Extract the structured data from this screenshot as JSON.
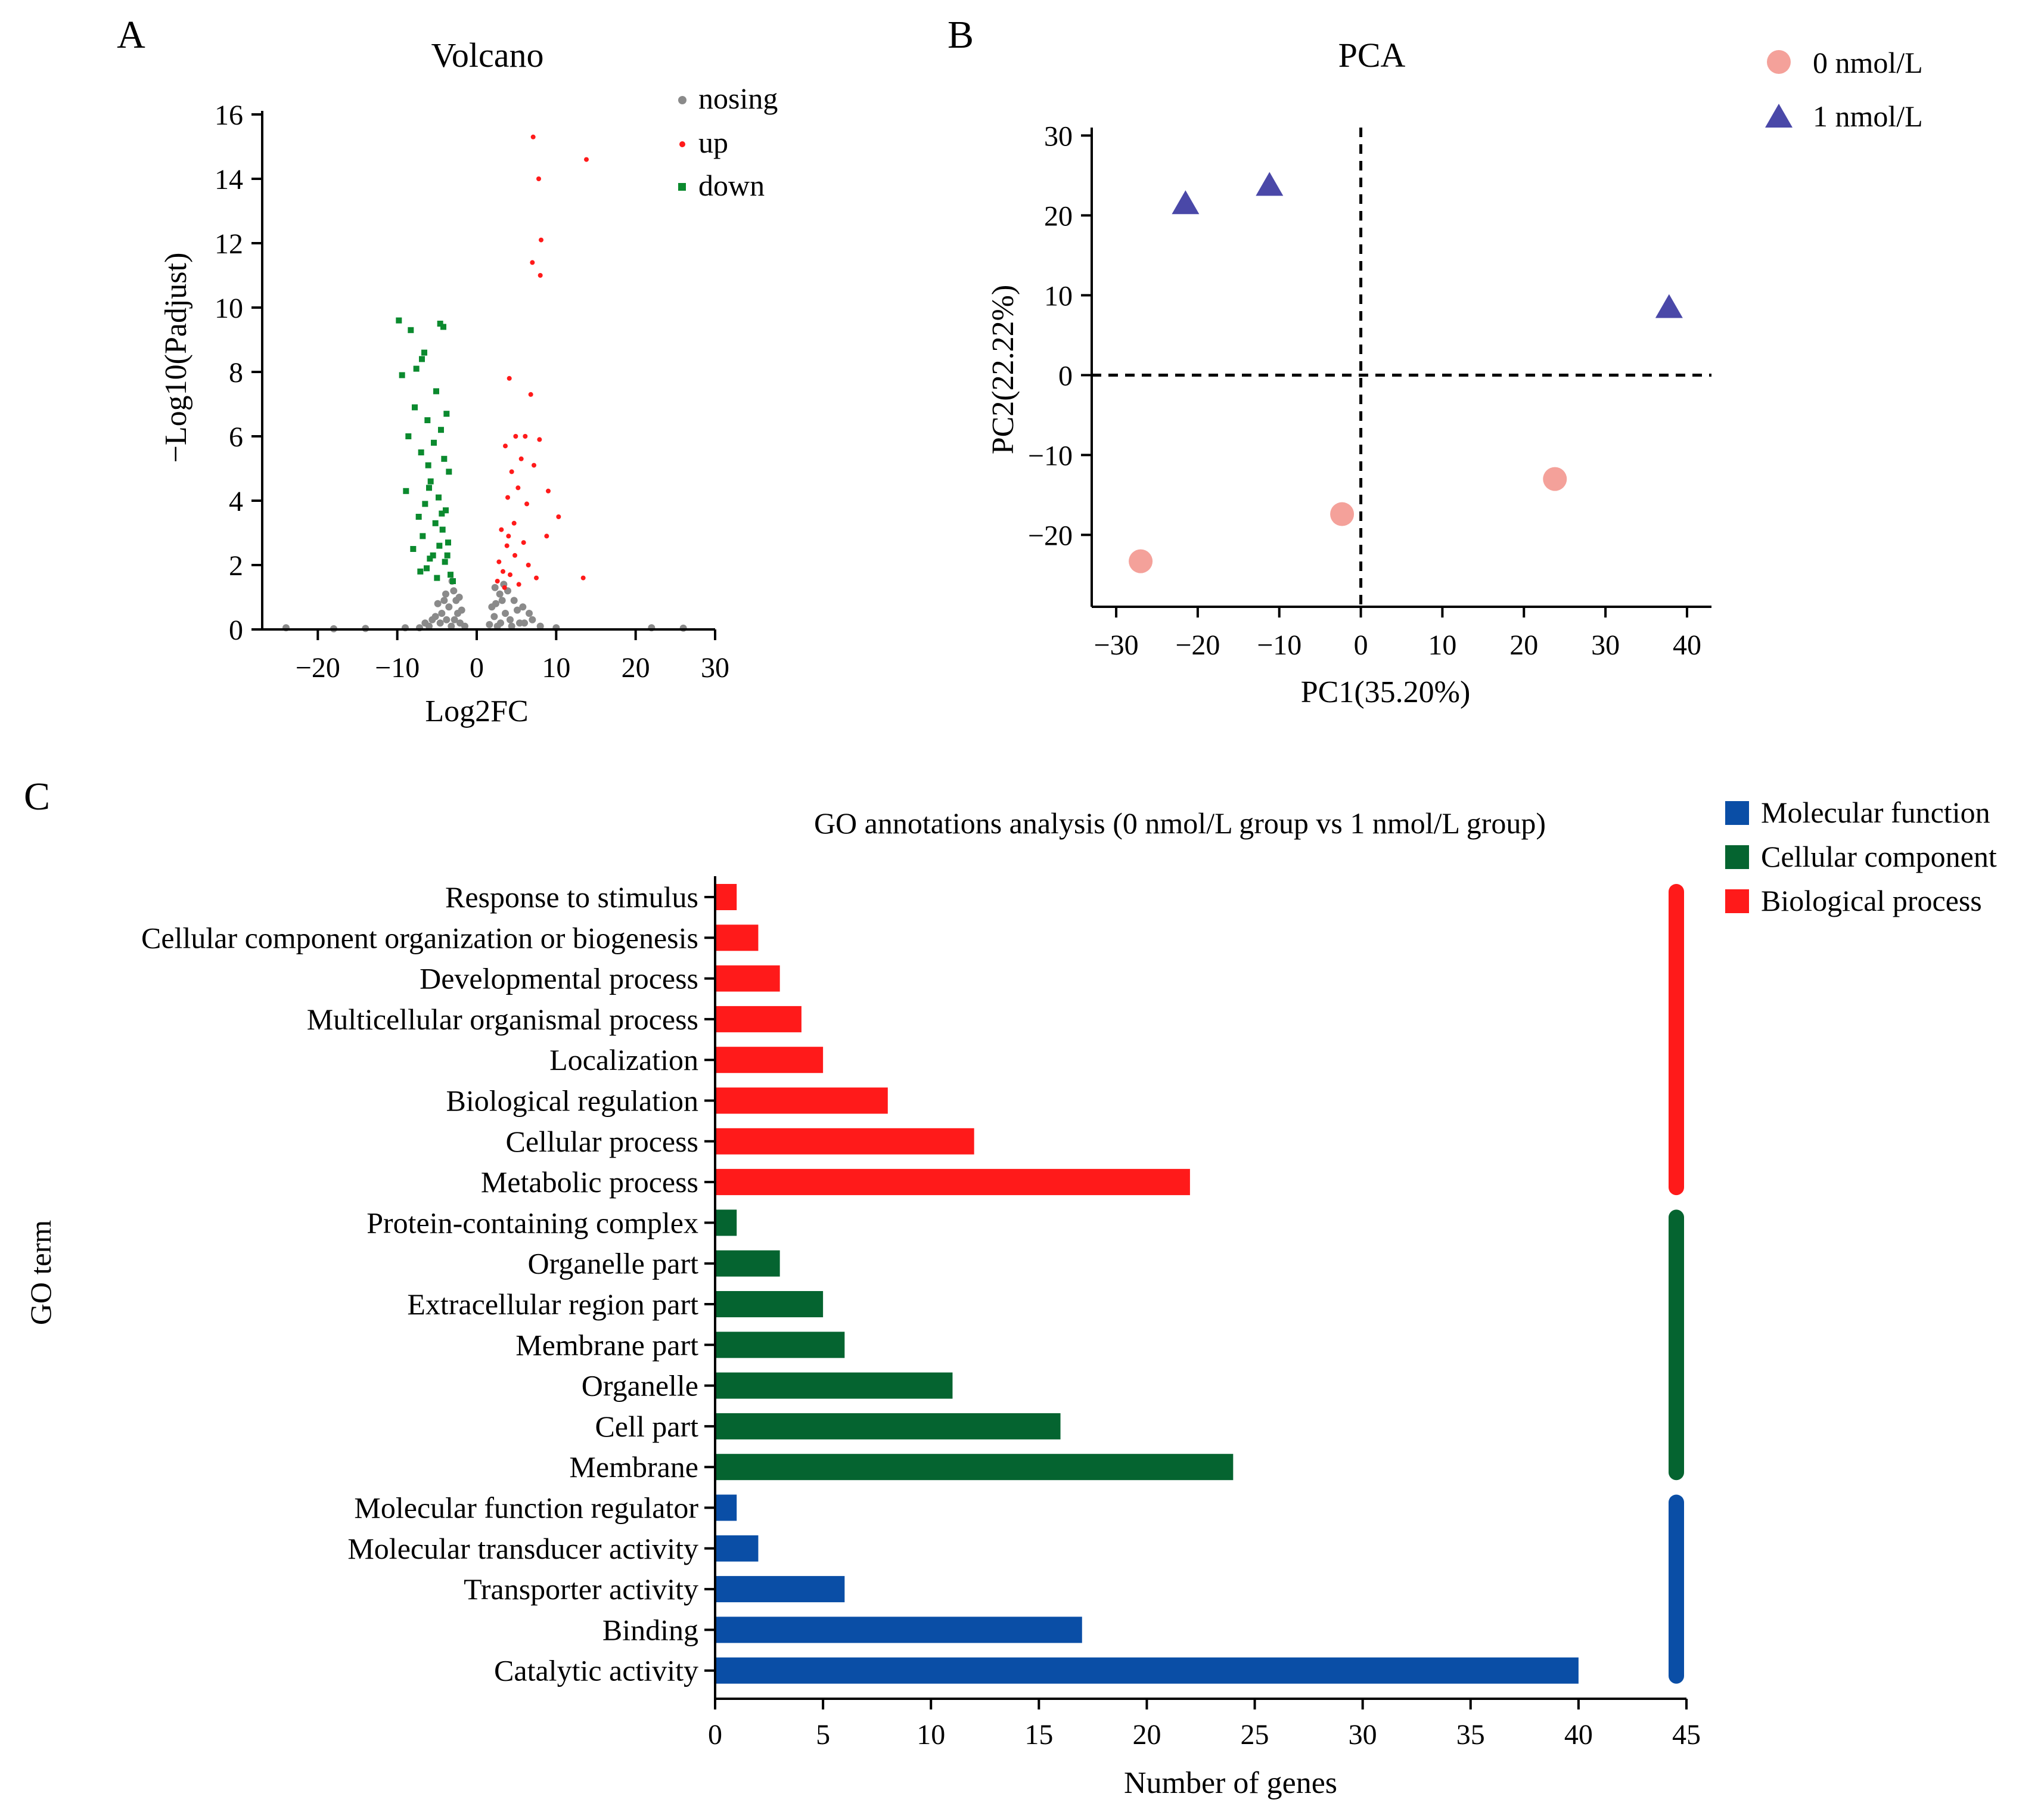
{
  "panel_labels": [
    "A",
    "B",
    "C"
  ],
  "colors": {
    "nosig": "#8a8a8a",
    "up": "#ff1a1a",
    "down": "#0b8a2e",
    "pca_0": "#f4a19a",
    "pca_1": "#4a48a8",
    "mf": "#0a4ea6",
    "cc": "#056430",
    "bp": "#ff1a1a"
  },
  "chart_data": [
    {
      "type": "scatter",
      "title": "Volcano",
      "xlabel": "Log2FC",
      "ylabel": "−Log10(Padjust)",
      "xlim": [
        -27,
        30
      ],
      "ylim": [
        0,
        16
      ],
      "xticks": [
        -20,
        -10,
        0,
        10,
        20,
        30
      ],
      "xtick_labels": [
        "−20",
        "−10",
        "0",
        "10",
        "20",
        "30"
      ],
      "yticks": [
        0,
        2,
        4,
        6,
        8,
        10,
        12,
        14,
        16
      ],
      "legend": [
        "nosing",
        "up",
        "down"
      ],
      "series": [
        {
          "name": "nosing",
          "color": "#8a8a8a",
          "points": [
            [
              -3.2,
              0.1
            ],
            [
              -3.8,
              0.3
            ],
            [
              -2.4,
              0.5
            ],
            [
              -4.1,
              0.9
            ],
            [
              -2.9,
              1.2
            ],
            [
              -3.5,
              0.7
            ],
            [
              -4.6,
              0.2
            ],
            [
              -5.2,
              0.4
            ],
            [
              -2.1,
              0.2
            ],
            [
              -6.0,
              0.1
            ],
            [
              -4.9,
              0.8
            ],
            [
              -3.1,
              1.5
            ],
            [
              -2.6,
              0.9
            ],
            [
              -5.6,
              0.3
            ],
            [
              -7.2,
              0.05
            ],
            [
              -3.9,
              1.1
            ],
            [
              -4.4,
              0.5
            ],
            [
              -2.2,
              1.0
            ],
            [
              -6.5,
              0.2
            ],
            [
              -2.8,
              0.3
            ],
            [
              3.0,
              0.2
            ],
            [
              3.6,
              0.5
            ],
            [
              2.4,
              0.8
            ],
            [
              4.2,
              0.3
            ],
            [
              2.9,
              1.1
            ],
            [
              5.1,
              0.6
            ],
            [
              3.4,
              1.4
            ],
            [
              2.2,
              0.4
            ],
            [
              6.0,
              0.2
            ],
            [
              4.7,
              0.9
            ],
            [
              3.9,
              1.2
            ],
            [
              2.6,
              0.1
            ],
            [
              5.8,
              0.7
            ],
            [
              7.0,
              0.3
            ],
            [
              4.4,
              0.1
            ],
            [
              3.2,
              0.9
            ],
            [
              6.6,
              0.5
            ],
            [
              2.3,
              1.3
            ],
            [
              5.4,
              0.2
            ],
            [
              8.0,
              0.1
            ],
            [
              -24,
              0.05
            ],
            [
              -18,
              0.02
            ],
            [
              -14,
              0.03
            ],
            [
              22,
              0.05
            ],
            [
              26,
              0.04
            ],
            [
              -1.5,
              0.1
            ],
            [
              1.6,
              0.15
            ],
            [
              -9,
              0.05
            ],
            [
              10,
              0.05
            ],
            [
              -1.9,
              0.6
            ],
            [
              1.9,
              0.7
            ]
          ]
        },
        {
          "name": "up",
          "color": "#ff1a1a",
          "points": [
            [
              7.1,
              15.3
            ],
            [
              13.8,
              14.6
            ],
            [
              7.8,
              14.0
            ],
            [
              8.1,
              12.1
            ],
            [
              7.0,
              11.4
            ],
            [
              8.0,
              11.0
            ],
            [
              4.1,
              7.8
            ],
            [
              6.8,
              7.3
            ],
            [
              4.9,
              6.0
            ],
            [
              6.1,
              6.0
            ],
            [
              7.9,
              5.9
            ],
            [
              3.6,
              5.7
            ],
            [
              5.6,
              5.3
            ],
            [
              7.2,
              5.1
            ],
            [
              4.4,
              4.9
            ],
            [
              9.0,
              4.3
            ],
            [
              5.2,
              4.4
            ],
            [
              3.9,
              4.1
            ],
            [
              6.3,
              3.9
            ],
            [
              10.3,
              3.5
            ],
            [
              4.7,
              3.3
            ],
            [
              3.1,
              3.1
            ],
            [
              8.8,
              2.9
            ],
            [
              5.9,
              2.7
            ],
            [
              3.8,
              2.6
            ],
            [
              4.8,
              2.3
            ],
            [
              2.8,
              2.1
            ],
            [
              6.5,
              2.0
            ],
            [
              3.3,
              1.8
            ],
            [
              4.2,
              1.7
            ],
            [
              13.4,
              1.6
            ],
            [
              2.6,
              1.5
            ],
            [
              5.3,
              1.4
            ],
            [
              3.5,
              1.3
            ],
            [
              7.5,
              1.6
            ],
            [
              4.0,
              2.9
            ]
          ]
        },
        {
          "name": "down",
          "color": "#0b8a2e",
          "points": [
            [
              -9.8,
              9.6
            ],
            [
              -4.6,
              9.5
            ],
            [
              -8.3,
              9.3
            ],
            [
              -4.2,
              9.4
            ],
            [
              -6.6,
              8.6
            ],
            [
              -6.9,
              8.4
            ],
            [
              -7.6,
              8.1
            ],
            [
              -9.4,
              7.9
            ],
            [
              -5.1,
              7.4
            ],
            [
              -7.8,
              6.9
            ],
            [
              -3.8,
              6.7
            ],
            [
              -6.2,
              6.5
            ],
            [
              -4.5,
              6.2
            ],
            [
              -8.6,
              6.0
            ],
            [
              -5.4,
              5.8
            ],
            [
              -7.0,
              5.5
            ],
            [
              -4.1,
              5.3
            ],
            [
              -6.1,
              5.1
            ],
            [
              -3.5,
              4.9
            ],
            [
              -5.8,
              4.6
            ],
            [
              -8.9,
              4.3
            ],
            [
              -4.8,
              4.1
            ],
            [
              -6.5,
              3.9
            ],
            [
              -3.9,
              3.7
            ],
            [
              -7.3,
              3.5
            ],
            [
              -5.2,
              3.3
            ],
            [
              -4.3,
              3.1
            ],
            [
              -6.8,
              2.9
            ],
            [
              -3.6,
              2.7
            ],
            [
              -8.0,
              2.5
            ],
            [
              -5.5,
              2.3
            ],
            [
              -4.0,
              2.1
            ],
            [
              -6.3,
              1.9
            ],
            [
              -3.3,
              1.7
            ],
            [
              -5.0,
              1.6
            ],
            [
              -7.1,
              1.8
            ],
            [
              -4.7,
              2.6
            ],
            [
              -3.0,
              1.5
            ],
            [
              -5.9,
              2.2
            ],
            [
              -4.4,
              3.6
            ],
            [
              -6.0,
              4.4
            ],
            [
              -3.7,
              2.3
            ]
          ]
        }
      ]
    },
    {
      "type": "scatter",
      "title": "PCA",
      "xlabel": "PC1(35.20%)",
      "ylabel": "PC2(22.22%)",
      "xlim": [
        -33,
        43
      ],
      "ylim": [
        -29,
        31
      ],
      "xticks": [
        -30,
        -20,
        -10,
        0,
        10,
        20,
        30,
        40
      ],
      "xtick_labels": [
        "−30",
        "−20",
        "−10",
        "0",
        "10",
        "20",
        "30",
        "40"
      ],
      "yticks": [
        -20,
        -10,
        0,
        10,
        20,
        30
      ],
      "ytick_labels": [
        "−20",
        "−10",
        "0",
        "10",
        "20",
        "30"
      ],
      "legend": [
        "0 nmol/L",
        "1 nmol/L"
      ],
      "series": [
        {
          "name": "0 nmol/L",
          "marker": "circle",
          "color": "#f4a19a",
          "points": [
            [
              -27.0,
              -23.3
            ],
            [
              -2.3,
              -17.4
            ],
            [
              23.8,
              -13.0
            ]
          ]
        },
        {
          "name": "1 nmol/L",
          "marker": "triangle",
          "color": "#4a48a8",
          "points": [
            [
              -21.5,
              21.5
            ],
            [
              -11.2,
              23.8
            ],
            [
              37.8,
              8.5
            ]
          ]
        }
      ]
    },
    {
      "type": "bar",
      "orientation": "horizontal",
      "title": "GO annotations analysis (0 nmol/L group vs 1 nmol/L group)",
      "xlabel": "Number of genes",
      "ylabel": "GO term",
      "xlim": [
        0,
        45
      ],
      "xticks": [
        0,
        5,
        10,
        15,
        20,
        25,
        30,
        35,
        40,
        45
      ],
      "legend": [
        "Molecular function",
        "Cellular component",
        "Biological process"
      ],
      "categories": [
        "Response to stimulus",
        "Cellular component organization or biogenesis",
        "Developmental process",
        "Multicellular organismal process",
        "Localization",
        "Biological regulation",
        "Cellular process",
        "Metabolic process",
        "Protein-containing complex",
        "Organelle part",
        "Extracellular region part",
        "Membrane part",
        "Organelle",
        "Cell part",
        "Membrane",
        "Molecular function regulator",
        "Molecular transducer activity",
        "Transporter activity",
        "Binding",
        "Catalytic activity"
      ],
      "values": [
        1,
        2,
        3,
        4,
        5,
        8,
        12,
        22,
        1,
        3,
        5,
        6,
        11,
        16,
        24,
        1,
        2,
        6,
        17,
        40
      ],
      "groups": [
        "Biological process",
        "Biological process",
        "Biological process",
        "Biological process",
        "Biological process",
        "Biological process",
        "Biological process",
        "Biological process",
        "Cellular component",
        "Cellular component",
        "Cellular component",
        "Cellular component",
        "Cellular component",
        "Cellular component",
        "Cellular component",
        "Molecular function",
        "Molecular function",
        "Molecular function",
        "Molecular function",
        "Molecular function"
      ]
    }
  ]
}
